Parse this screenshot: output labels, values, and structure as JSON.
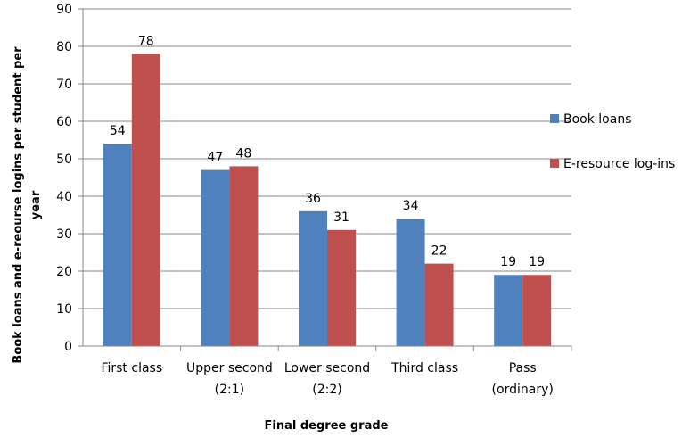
{
  "chart_data": {
    "type": "bar",
    "categories": [
      [
        "First class"
      ],
      [
        "Upper second",
        "(2:1)"
      ],
      [
        "Lower second",
        "(2:2)"
      ],
      [
        "Third class"
      ],
      [
        "Pass",
        "(ordinary)"
      ]
    ],
    "series": [
      {
        "name": "Book loans",
        "color": "#4f81bd",
        "values": [
          54,
          47,
          36,
          34,
          19
        ]
      },
      {
        "name": "E-resource log-ins",
        "color": "#c0504d",
        "values": [
          78,
          48,
          31,
          22,
          19
        ]
      }
    ],
    "xlabel": "Final degree grade",
    "ylabel": [
      "Book loans  and  e-reourse logins per student per",
      "year"
    ],
    "ylim": [
      0,
      90
    ],
    "yticks": [
      0,
      10,
      20,
      30,
      40,
      50,
      60,
      70,
      80,
      90
    ],
    "grid": true,
    "legend": "right",
    "data_labels": true
  }
}
